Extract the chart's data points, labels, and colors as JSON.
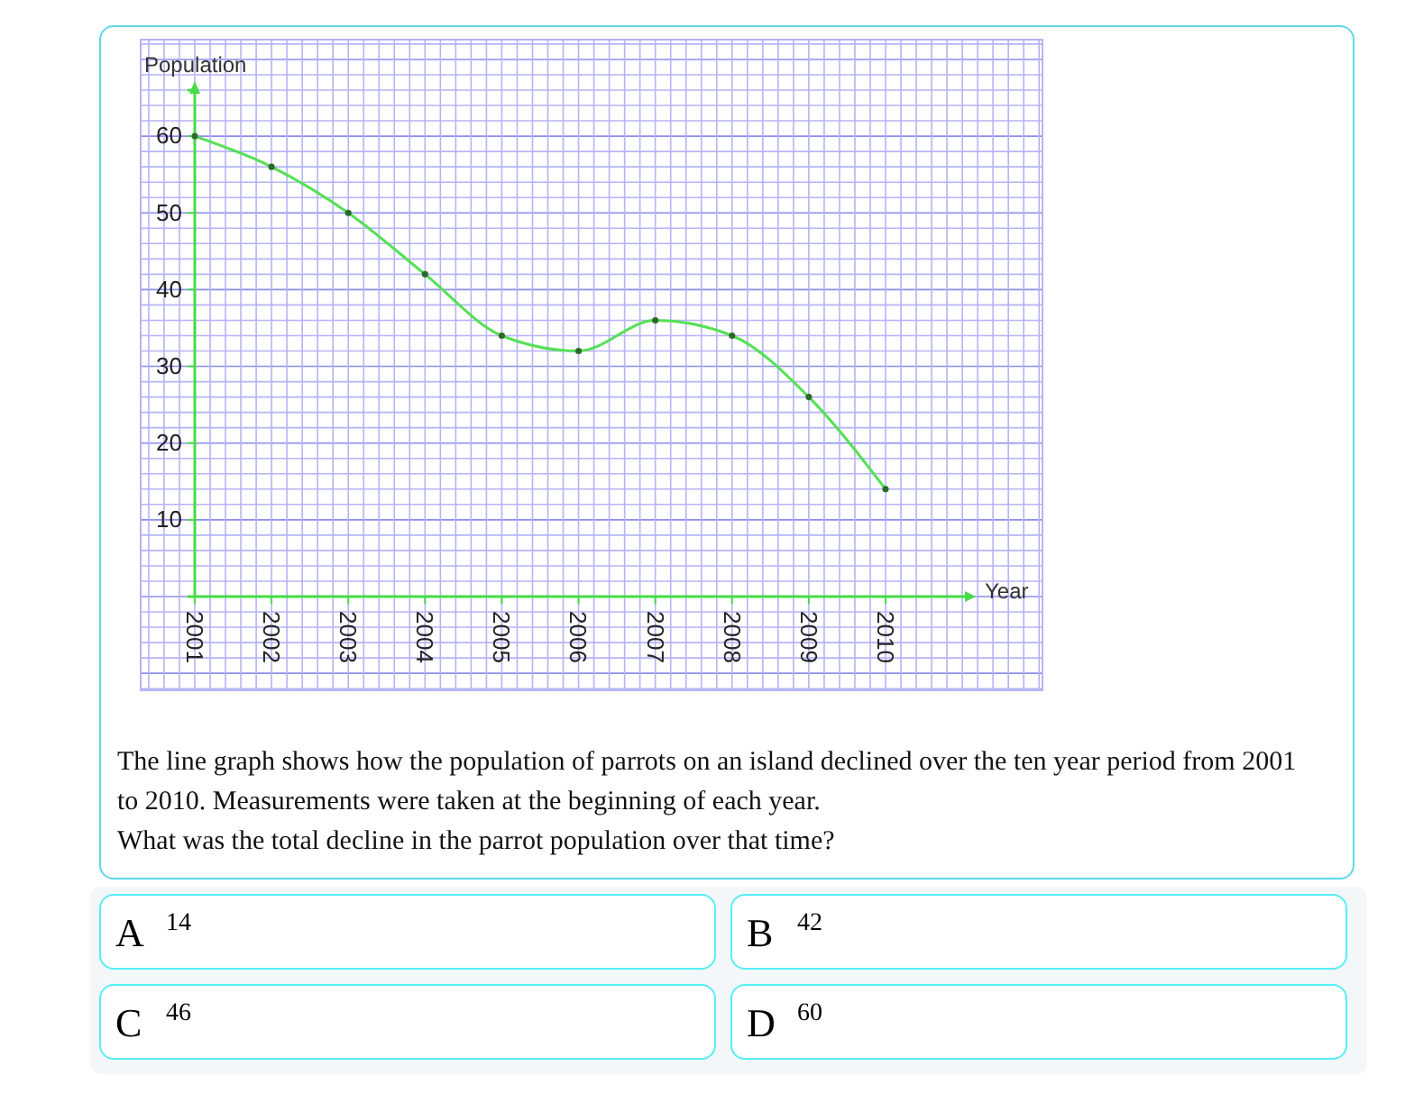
{
  "chart_data": {
    "type": "line",
    "xlabel": "Year",
    "ylabel": "Population",
    "categories": [
      "2001",
      "2002",
      "2003",
      "2004",
      "2005",
      "2006",
      "2007",
      "2008",
      "2009",
      "2010"
    ],
    "values": [
      60,
      56,
      50,
      42,
      34,
      32,
      36,
      34,
      26,
      14
    ],
    "color": "#55e055",
    "marker": "circle",
    "grid": true,
    "ylim": [
      0,
      66
    ],
    "yticks": [
      10,
      20,
      30,
      40,
      50,
      60
    ],
    "annotations": [
      "The line graph shows how the population of parrots on an island declined over the ten year period from 2001 to 2010. Measurements were taken at the beginning of each year.",
      "What was the total decline in the parrot population over that time?",
      "A",
      "14",
      "B",
      "42",
      "C",
      "46",
      "D",
      "60"
    ]
  }
}
